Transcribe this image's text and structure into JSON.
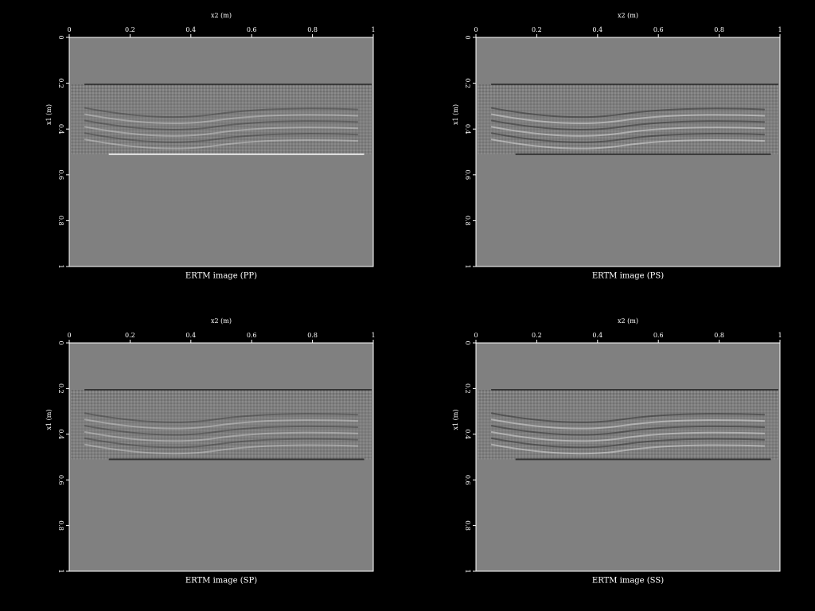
{
  "chart_data": [
    {
      "type": "image",
      "title": "ERTM image (PP)",
      "xlabel": "x2 (m)",
      "ylabel": "x1 (m)",
      "xlim": [
        0,
        1
      ],
      "ylim": [
        0,
        1
      ],
      "invert_y": true,
      "xticks": [
        0,
        0.2,
        0.4,
        0.6,
        0.8,
        1
      ],
      "yticks": [
        0,
        0.2,
        0.4,
        0.6,
        0.8,
        1
      ]
    },
    {
      "type": "image",
      "title": "ERTM image (PS)",
      "xlabel": "x2 (m)",
      "ylabel": "x1 (m)",
      "xlim": [
        0,
        1
      ],
      "ylim": [
        0,
        1
      ],
      "invert_y": true,
      "xticks": [
        0,
        0.2,
        0.4,
        0.6,
        0.8,
        1
      ],
      "yticks": [
        0,
        0.2,
        0.4,
        0.6,
        0.8,
        1
      ]
    },
    {
      "type": "image",
      "title": "ERTM image (SP)",
      "xlabel": "x2 (m)",
      "ylabel": "x1 (m)",
      "xlim": [
        0,
        1
      ],
      "ylim": [
        0,
        1
      ],
      "invert_y": true,
      "xticks": [
        0,
        0.2,
        0.4,
        0.6,
        0.8,
        1
      ],
      "yticks": [
        0,
        0.2,
        0.4,
        0.6,
        0.8,
        1
      ]
    },
    {
      "type": "image",
      "title": "ERTM image (SS)",
      "xlabel": "x2 (m)",
      "ylabel": "x1 (m)",
      "xlim": [
        0,
        1
      ],
      "ylim": [
        0,
        1
      ],
      "invert_y": true,
      "xticks": [
        0,
        0.2,
        0.4,
        0.6,
        0.8,
        1
      ],
      "yticks": [
        0,
        0.2,
        0.4,
        0.6,
        0.8,
        1
      ]
    }
  ]
}
